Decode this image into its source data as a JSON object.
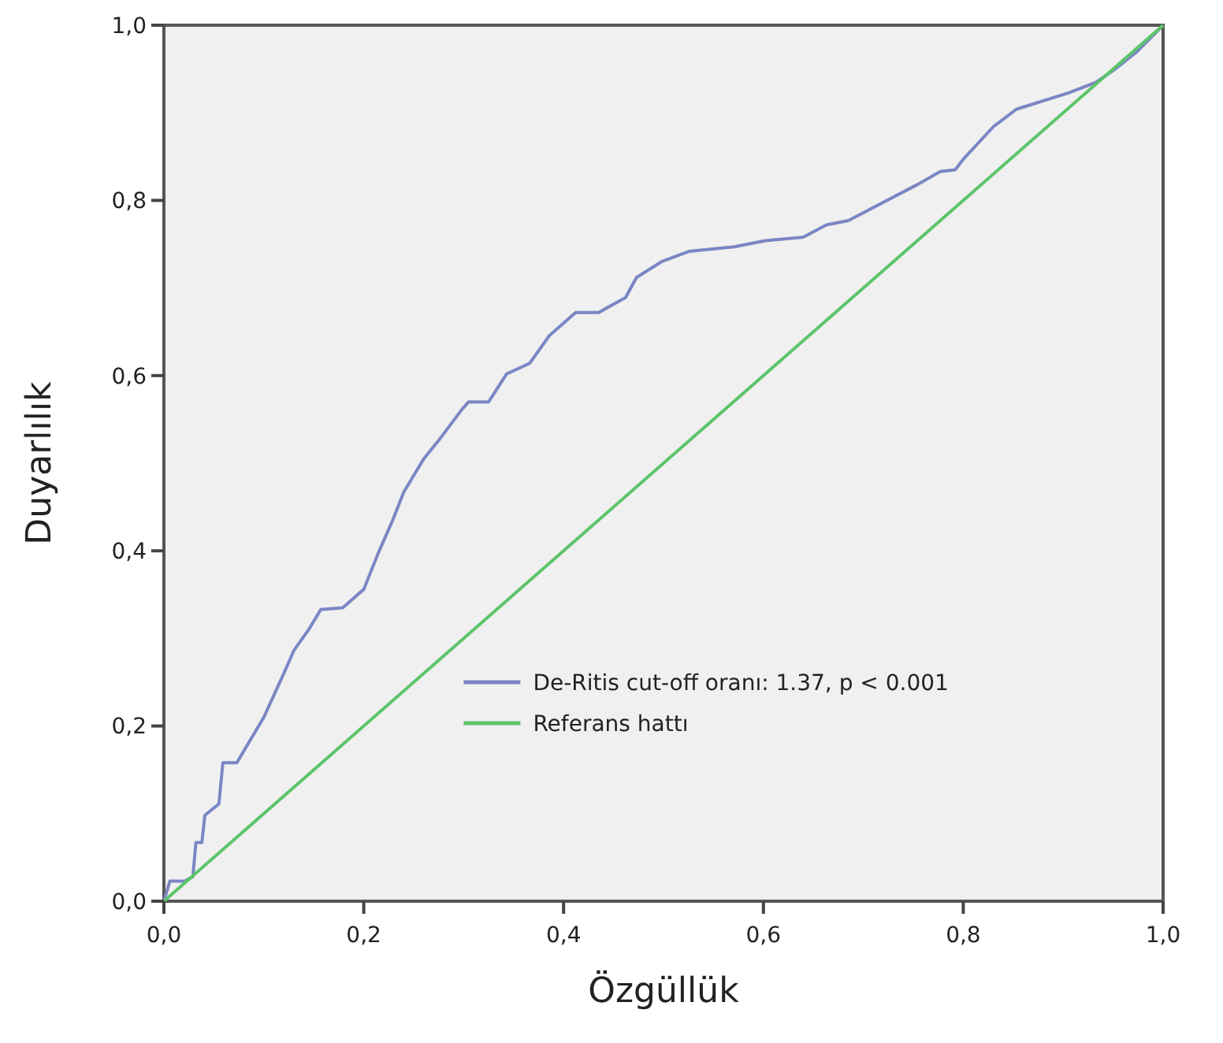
{
  "chart_data": {
    "type": "line",
    "xlabel": "Özgüllük",
    "ylabel": "Duyarlılık",
    "xlim": [
      0,
      1
    ],
    "ylim": [
      0,
      1
    ],
    "xticks": [
      {
        "value": 0,
        "label": "0,0"
      },
      {
        "value": 0.2,
        "label": "0,2"
      },
      {
        "value": 0.4,
        "label": "0,4"
      },
      {
        "value": 0.6,
        "label": "0,6"
      },
      {
        "value": 0.8,
        "label": "0,8"
      },
      {
        "value": 1,
        "label": "1,0"
      }
    ],
    "yticks": [
      {
        "value": 0,
        "label": "0,0"
      },
      {
        "value": 0.2,
        "label": "0,2"
      },
      {
        "value": 0.4,
        "label": "0,4"
      },
      {
        "value": 0.6,
        "label": "0,6"
      },
      {
        "value": 0.8,
        "label": "0,8"
      },
      {
        "value": 1,
        "label": "1,0"
      }
    ],
    "grid": false,
    "legend": "right",
    "marker": "none",
    "line_style": "solid",
    "series": [
      {
        "name": "De-Ritis cut-off oranı: 1.37, p < 0.001",
        "color": "#7b86c4",
        "x": [
          0,
          0.006,
          0.021,
          0.029,
          0.032,
          0.038,
          0.041,
          0.055,
          0.059,
          0.073,
          0.1,
          0.12,
          0.13,
          0.146,
          0.157,
          0.179,
          0.2,
          0.214,
          0.229,
          0.24,
          0.26,
          0.275,
          0.298,
          0.305,
          0.325,
          0.343,
          0.366,
          0.386,
          0.412,
          0.435,
          0.462,
          0.473,
          0.498,
          0.526,
          0.571,
          0.602,
          0.64,
          0.663,
          0.685,
          0.754,
          0.777,
          0.792,
          0.8,
          0.83,
          0.853,
          0.906,
          0.933,
          0.951,
          0.974,
          1
        ],
        "values": [
          0,
          0.023,
          0.023,
          0.028,
          0.067,
          0.067,
          0.098,
          0.111,
          0.158,
          0.158,
          0.21,
          0.26,
          0.286,
          0.312,
          0.333,
          0.335,
          0.356,
          0.396,
          0.435,
          0.467,
          0.505,
          0.526,
          0.561,
          0.57,
          0.57,
          0.602,
          0.614,
          0.646,
          0.672,
          0.672,
          0.689,
          0.712,
          0.73,
          0.742,
          0.747,
          0.754,
          0.758,
          0.772,
          0.777,
          0.818,
          0.833,
          0.835,
          0.847,
          0.884,
          0.904,
          0.923,
          0.935,
          0.949,
          0.97,
          1
        ]
      },
      {
        "name": "Referans hattı",
        "color": "#5cc46a",
        "x": [
          0,
          1
        ],
        "values": [
          0,
          1
        ]
      }
    ]
  }
}
